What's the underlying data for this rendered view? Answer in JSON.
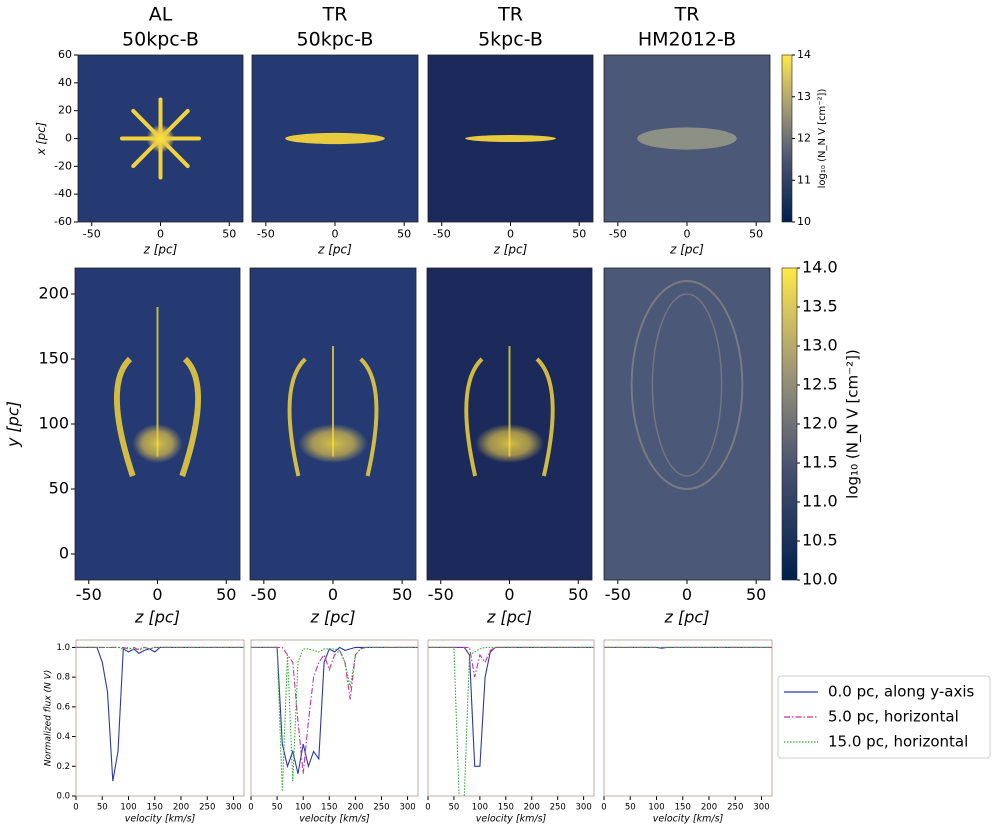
{
  "chart_data": [
    {
      "type": "image",
      "title": [
        "AL",
        "50kpc-B"
      ],
      "xlabel": "z [pc]",
      "ylabel": "x [pc]",
      "xlim": [
        -60,
        60
      ],
      "ylim": [
        -60,
        60
      ],
      "xticks": [
        -50,
        0,
        50
      ],
      "yticks": [
        -60,
        -40,
        -20,
        0,
        20,
        40,
        60
      ]
    },
    {
      "type": "image",
      "title": [
        "TR",
        "50kpc-B"
      ],
      "xlabel": "z [pc]",
      "xlim": [
        -60,
        60
      ],
      "ylim": [
        -60,
        60
      ],
      "xticks": [
        -50,
        0,
        50
      ]
    },
    {
      "type": "image",
      "title": [
        "TR",
        "5kpc-B"
      ],
      "xlabel": "z [pc]",
      "xlim": [
        -60,
        60
      ],
      "ylim": [
        -60,
        60
      ],
      "xticks": [
        -50,
        0,
        50
      ]
    },
    {
      "type": "image",
      "title": [
        "TR",
        "HM2012-B"
      ],
      "xlabel": "z [pc]",
      "xlim": [
        -60,
        60
      ],
      "ylim": [
        -60,
        60
      ],
      "xticks": [
        -50,
        0,
        50
      ],
      "colorbar": {
        "label": "log₁₀ (N_N V [cm⁻²])",
        "lim": [
          10,
          14
        ],
        "ticks": [
          10,
          11,
          12,
          13,
          14
        ]
      }
    },
    {
      "type": "image",
      "xlabel": "z [pc]",
      "ylabel": "y [pc]",
      "xlim": [
        -60,
        60
      ],
      "ylim": [
        -20,
        220
      ],
      "xticks": [
        -50,
        0,
        50
      ],
      "yticks": [
        0,
        50,
        100,
        150,
        200
      ]
    },
    {
      "type": "image",
      "xlabel": "z [pc]",
      "xlim": [
        -60,
        60
      ],
      "ylim": [
        -20,
        220
      ],
      "xticks": [
        -50,
        0,
        50
      ]
    },
    {
      "type": "image",
      "xlabel": "z [pc]",
      "xlim": [
        -60,
        60
      ],
      "ylim": [
        -20,
        220
      ],
      "xticks": [
        -50,
        0,
        50
      ]
    },
    {
      "type": "image",
      "xlabel": "z [pc]",
      "xlim": [
        -60,
        60
      ],
      "ylim": [
        -20,
        220
      ],
      "xticks": [
        -50,
        0,
        50
      ],
      "colorbar": {
        "label": "log₁₀ (N_N V [cm⁻²])",
        "lim": [
          10,
          14
        ],
        "ticks": [
          {
            "value": 10,
            "label": "10.0"
          },
          10.5,
          {
            "value": 11,
            "label": "11.0"
          },
          11.5,
          {
            "value": 12,
            "label": "12.0"
          },
          12.5,
          {
            "value": 13,
            "label": "13.0"
          },
          13.5,
          {
            "value": 14,
            "label": "14.0"
          }
        ]
      }
    },
    {
      "type": "line",
      "xlabel": "velocity [km/s]",
      "ylabel": "Normalized flux (N V)",
      "xlim": [
        0,
        320
      ],
      "ylim": [
        0,
        1.05
      ],
      "xticks": [
        0,
        50,
        100,
        150,
        200,
        250,
        300
      ],
      "yticks": [
        {
          "value": 0,
          "label": "0.0"
        },
        0.2,
        0.4,
        0.6,
        0.8,
        {
          "value": 1,
          "label": "1.0"
        }
      ],
      "x": [
        0,
        10,
        20,
        30,
        40,
        50,
        60,
        70,
        80,
        90,
        100,
        110,
        120,
        130,
        140,
        150,
        160,
        170,
        180,
        190,
        200,
        210,
        220,
        230,
        240,
        250,
        260,
        270,
        280,
        290,
        300,
        310,
        320
      ],
      "series": [
        {
          "color": "#2b3aa6",
          "style": "solid",
          "values": [
            1,
            1,
            1,
            1,
            1,
            0.9,
            0.7,
            0.1,
            0.3,
            0.99,
            0.97,
            0.99,
            0.96,
            0.98,
            0.99,
            0.97,
            1,
            1,
            1,
            1,
            1,
            1,
            1,
            1,
            1,
            1,
            1,
            1,
            1,
            1,
            1,
            1,
            1
          ]
        },
        {
          "color": "#cc3399",
          "style": "dashdot",
          "values": [
            1,
            1,
            1,
            1,
            1,
            1,
            1,
            1,
            1,
            1,
            0.99,
            1,
            0.98,
            1,
            0.99,
            1,
            1,
            1,
            1,
            1,
            1,
            1,
            1,
            1,
            1,
            1,
            1,
            1,
            1,
            1,
            1,
            1,
            1
          ]
        },
        {
          "color": "#33aa33",
          "style": "dotted",
          "values": [
            1,
            1,
            1,
            1,
            1,
            1,
            1,
            1,
            1,
            0.99,
            1,
            0.98,
            0.99,
            1,
            0.99,
            1,
            1,
            1,
            1,
            1,
            1,
            1,
            1,
            1,
            1,
            1,
            1,
            1,
            1,
            1,
            1,
            1,
            1
          ]
        }
      ]
    },
    {
      "type": "line",
      "xlabel": "velocity [km/s]",
      "xlim": [
        0,
        320
      ],
      "ylim": [
        0,
        1.05
      ],
      "xticks": [
        0,
        50,
        100,
        150,
        200,
        250,
        300
      ],
      "x": [
        0,
        10,
        20,
        30,
        40,
        50,
        60,
        70,
        80,
        90,
        100,
        110,
        120,
        130,
        140,
        150,
        160,
        170,
        180,
        190,
        200,
        210,
        220,
        230,
        240,
        250,
        260,
        270,
        280,
        290,
        300,
        310,
        320
      ],
      "series": [
        {
          "color": "#2b3aa6",
          "style": "solid",
          "values": [
            1,
            1,
            1,
            1,
            1,
            1,
            0.35,
            0.2,
            0.3,
            0.15,
            0.35,
            0.2,
            0.3,
            0.25,
            0.9,
            0.99,
            0.97,
            1,
            0.98,
            0.99,
            1,
            1,
            1,
            1,
            1,
            1,
            1,
            1,
            1,
            1,
            1,
            1,
            1
          ]
        },
        {
          "color": "#cc3399",
          "style": "dashdot",
          "values": [
            1,
            1,
            1,
            1,
            1,
            1,
            1,
            0.95,
            0.9,
            0.5,
            0.15,
            0.5,
            0.8,
            0.9,
            0.95,
            0.85,
            0.95,
            0.98,
            0.9,
            0.65,
            0.95,
            0.99,
            1,
            1,
            1,
            1,
            1,
            1,
            1,
            1,
            1,
            1,
            1
          ]
        },
        {
          "color": "#33aa33",
          "style": "dotted",
          "values": [
            1,
            1,
            1,
            1,
            1,
            1,
            0.03,
            0.95,
            0.1,
            0.9,
            0.99,
            0.99,
            0.98,
            0.97,
            0.99,
            0.99,
            0.99,
            0.98,
            0.9,
            0.73,
            0.95,
            0.99,
            1,
            1,
            1,
            1,
            1,
            1,
            1,
            1,
            1,
            1,
            1
          ]
        }
      ]
    },
    {
      "type": "line",
      "xlabel": "velocity [km/s]",
      "xlim": [
        0,
        320
      ],
      "ylim": [
        0,
        1.05
      ],
      "xticks": [
        0,
        50,
        100,
        150,
        200,
        250,
        300
      ],
      "x": [
        0,
        10,
        20,
        30,
        40,
        50,
        60,
        70,
        80,
        90,
        100,
        110,
        120,
        130,
        140,
        150,
        160,
        170,
        180,
        190,
        200,
        210,
        220,
        230,
        240,
        250,
        260,
        270,
        280,
        290,
        300,
        310,
        320
      ],
      "series": [
        {
          "color": "#2b3aa6",
          "style": "solid",
          "values": [
            1,
            1,
            1,
            1,
            1,
            1,
            1,
            1,
            0.95,
            0.2,
            0.2,
            0.8,
            0.97,
            1,
            1,
            1,
            1,
            1,
            1,
            1,
            1,
            1,
            1,
            1,
            1,
            1,
            1,
            1,
            1,
            1,
            1,
            1,
            1
          ]
        },
        {
          "color": "#cc3399",
          "style": "dashdot",
          "values": [
            1,
            1,
            1,
            1,
            1,
            1,
            1,
            1,
            1,
            0.8,
            0.95,
            0.9,
            0.98,
            1,
            1,
            1,
            1,
            1,
            1,
            1,
            1,
            1,
            1,
            1,
            1,
            1,
            1,
            1,
            1,
            1,
            1,
            1,
            1
          ]
        },
        {
          "color": "#33aa33",
          "style": "dotted",
          "values": [
            1,
            1,
            1,
            1,
            1,
            1,
            0,
            0,
            0.95,
            0.97,
            0.99,
            1,
            1,
            1,
            1,
            1,
            1,
            1,
            1,
            1,
            1,
            1,
            1,
            1,
            1,
            1,
            1,
            1,
            1,
            1,
            1,
            1,
            1
          ]
        }
      ]
    },
    {
      "type": "line",
      "xlabel": "velocity [km/s]",
      "xlim": [
        0,
        320
      ],
      "ylim": [
        0,
        1.05
      ],
      "xticks": [
        0,
        50,
        100,
        150,
        200,
        250,
        300
      ],
      "legend": "outside right",
      "x": [
        0,
        10,
        20,
        30,
        40,
        50,
        60,
        70,
        80,
        90,
        100,
        110,
        120,
        130,
        140,
        150,
        160,
        170,
        180,
        190,
        200,
        210,
        220,
        230,
        240,
        250,
        260,
        270,
        280,
        290,
        300,
        310,
        320
      ],
      "series": [
        {
          "name": "0.0 pc, along y-axis",
          "color": "#2b3aa6",
          "style": "solid",
          "values": [
            1,
            1,
            1,
            1,
            1,
            1,
            1,
            1,
            1,
            1,
            1,
            0.995,
            1,
            1,
            1,
            1,
            1,
            1,
            1,
            1,
            1,
            1,
            1,
            1,
            1,
            1,
            1,
            1,
            1,
            1,
            1,
            1,
            1
          ]
        },
        {
          "name": "5.0 pc, horizontal",
          "color": "#cc3399",
          "style": "dashdot",
          "values": [
            1,
            1,
            1,
            1,
            1,
            1,
            1,
            1,
            1,
            1,
            1,
            1,
            1,
            1,
            1,
            1,
            1,
            1,
            1,
            1,
            1,
            1,
            1,
            1,
            1,
            1,
            1,
            1,
            1,
            1,
            1,
            1,
            1
          ]
        },
        {
          "name": "15.0 pc, horizontal",
          "color": "#33aa33",
          "style": "dotted",
          "values": [
            1,
            1,
            1,
            1,
            1,
            1,
            1,
            1,
            1,
            1,
            1,
            1,
            1,
            1,
            1,
            1,
            1,
            1,
            1,
            1,
            1,
            1,
            1,
            1,
            1,
            1,
            1,
            1,
            1,
            1,
            1,
            1,
            1
          ]
        }
      ]
    }
  ]
}
